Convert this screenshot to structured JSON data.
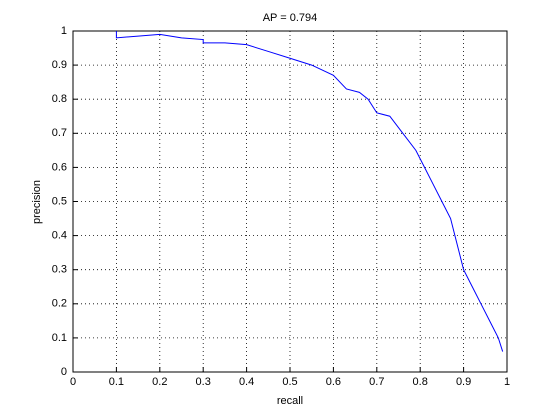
{
  "chart_data": {
    "type": "line",
    "title": "AP = 0.794",
    "x_label": "recall",
    "y_label": "precision",
    "x": [
      0.1,
      0.1,
      0.15,
      0.2,
      0.25,
      0.3,
      0.3,
      0.35,
      0.4,
      0.45,
      0.5,
      0.55,
      0.6,
      0.63,
      0.66,
      0.68,
      0.7,
      0.73,
      0.76,
      0.79,
      0.81,
      0.83,
      0.85,
      0.87,
      0.88,
      0.89,
      0.9,
      0.92,
      0.94,
      0.96,
      0.98,
      0.99
    ],
    "values": [
      1,
      0.98,
      0.985,
      0.99,
      0.98,
      0.975,
      0.965,
      0.965,
      0.96,
      0.94,
      0.92,
      0.9,
      0.87,
      0.83,
      0.82,
      0.8,
      0.76,
      0.75,
      0.7,
      0.65,
      0.6,
      0.55,
      0.5,
      0.45,
      0.4,
      0.35,
      0.3,
      0.25,
      0.2,
      0.15,
      0.1,
      0.06
    ],
    "color": "#0000ff",
    "xlim": [
      0,
      1
    ],
    "ylim": [
      0,
      1
    ],
    "xticks": [
      0,
      0.1,
      0.2,
      0.3,
      0.4,
      0.5,
      0.6,
      0.7,
      0.8,
      0.9,
      1
    ],
    "yticks": [
      0,
      0.1,
      0.2,
      0.3,
      0.4,
      0.5,
      0.6,
      0.7,
      0.8,
      0.9,
      1
    ],
    "grid": true
  }
}
